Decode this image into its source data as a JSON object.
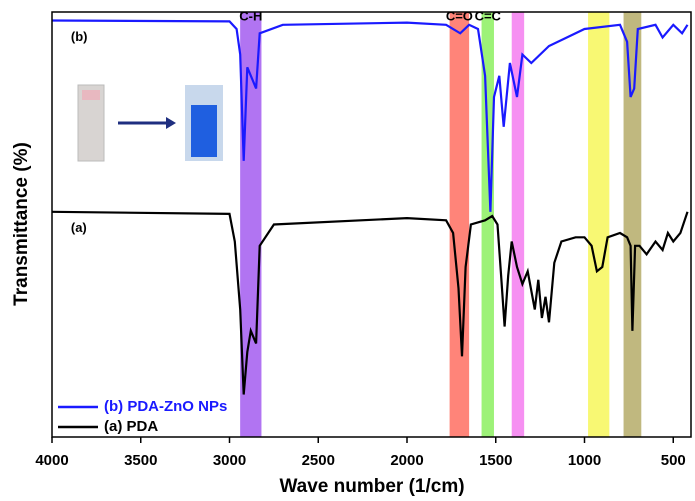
{
  "chart_data": {
    "type": "line",
    "xlabel": "Wave number (1/cm)",
    "ylabel": "Transmittance (%)",
    "xlim": [
      4000,
      400
    ],
    "ylim": [
      0,
      100
    ],
    "xticks": [
      4000,
      3500,
      3000,
      2500,
      2000,
      1500,
      1000,
      500
    ],
    "legend": "lower left",
    "bands": [
      {
        "from": 2940,
        "to": 2820,
        "color": "#a35cf0",
        "label": "C-H"
      },
      {
        "from": 1760,
        "to": 1650,
        "color": "#ff6f61",
        "label": "C=O"
      },
      {
        "from": 1580,
        "to": 1510,
        "color": "#8cf060",
        "label": "C=C"
      },
      {
        "from": 1410,
        "to": 1340,
        "color": "#f47cf0"
      },
      {
        "from": 980,
        "to": 860,
        "color": "#f7f75a"
      },
      {
        "from": 780,
        "to": 680,
        "color": "#b5ac68"
      }
    ],
    "annotations": [
      {
        "text": "(b)",
        "x": 3950,
        "y": 94
      },
      {
        "text": "(a)",
        "x": 3950,
        "y": 49
      }
    ],
    "series": [
      {
        "name": "(b) PDA-ZnO NPs",
        "color": "#1a1aff",
        "x": [
          4000,
          3000,
          2960,
          2940,
          2920,
          2900,
          2870,
          2850,
          2830,
          2700,
          2000,
          1780,
          1700,
          1650,
          1600,
          1560,
          1530,
          1510,
          1480,
          1455,
          1420,
          1380,
          1350,
          1300,
          1200,
          1100,
          1000,
          800,
          760,
          740,
          720,
          700,
          600,
          560,
          500,
          450,
          420
        ],
        "values": [
          98,
          97.8,
          96,
          90,
          65,
          87,
          84,
          82,
          95,
          97,
          97.5,
          97,
          95,
          97,
          96,
          85,
          53,
          80,
          85,
          73,
          88,
          80,
          90,
          88,
          92,
          94,
          96,
          97,
          93,
          80,
          82,
          96,
          97,
          94,
          97,
          95,
          97
        ]
      },
      {
        "name": "(a) PDA",
        "color": "#000000",
        "x": [
          4000,
          3000,
          2970,
          2940,
          2920,
          2900,
          2880,
          2850,
          2830,
          2750,
          2000,
          1780,
          1740,
          1710,
          1690,
          1670,
          1640,
          1560,
          1520,
          1490,
          1470,
          1450,
          1430,
          1410,
          1380,
          1350,
          1320,
          1280,
          1260,
          1240,
          1220,
          1200,
          1170,
          1130,
          1050,
          1000,
          960,
          930,
          900,
          870,
          800,
          760,
          740,
          730,
          715,
          690,
          650,
          600,
          560,
          530,
          500,
          460,
          420
        ],
        "values": [
          53,
          52.5,
          46,
          30,
          10,
          20,
          25,
          22,
          45,
          50,
          51.5,
          51,
          48,
          35,
          19,
          40,
          50,
          51,
          52,
          50,
          38,
          26,
          38,
          46,
          40,
          36,
          39,
          30,
          37,
          28,
          33,
          27,
          41,
          46,
          47,
          47,
          45,
          39,
          40,
          47,
          48,
          47,
          45,
          25,
          45,
          45,
          43,
          46,
          44,
          48,
          46,
          48,
          53
        ]
      }
    ]
  }
}
